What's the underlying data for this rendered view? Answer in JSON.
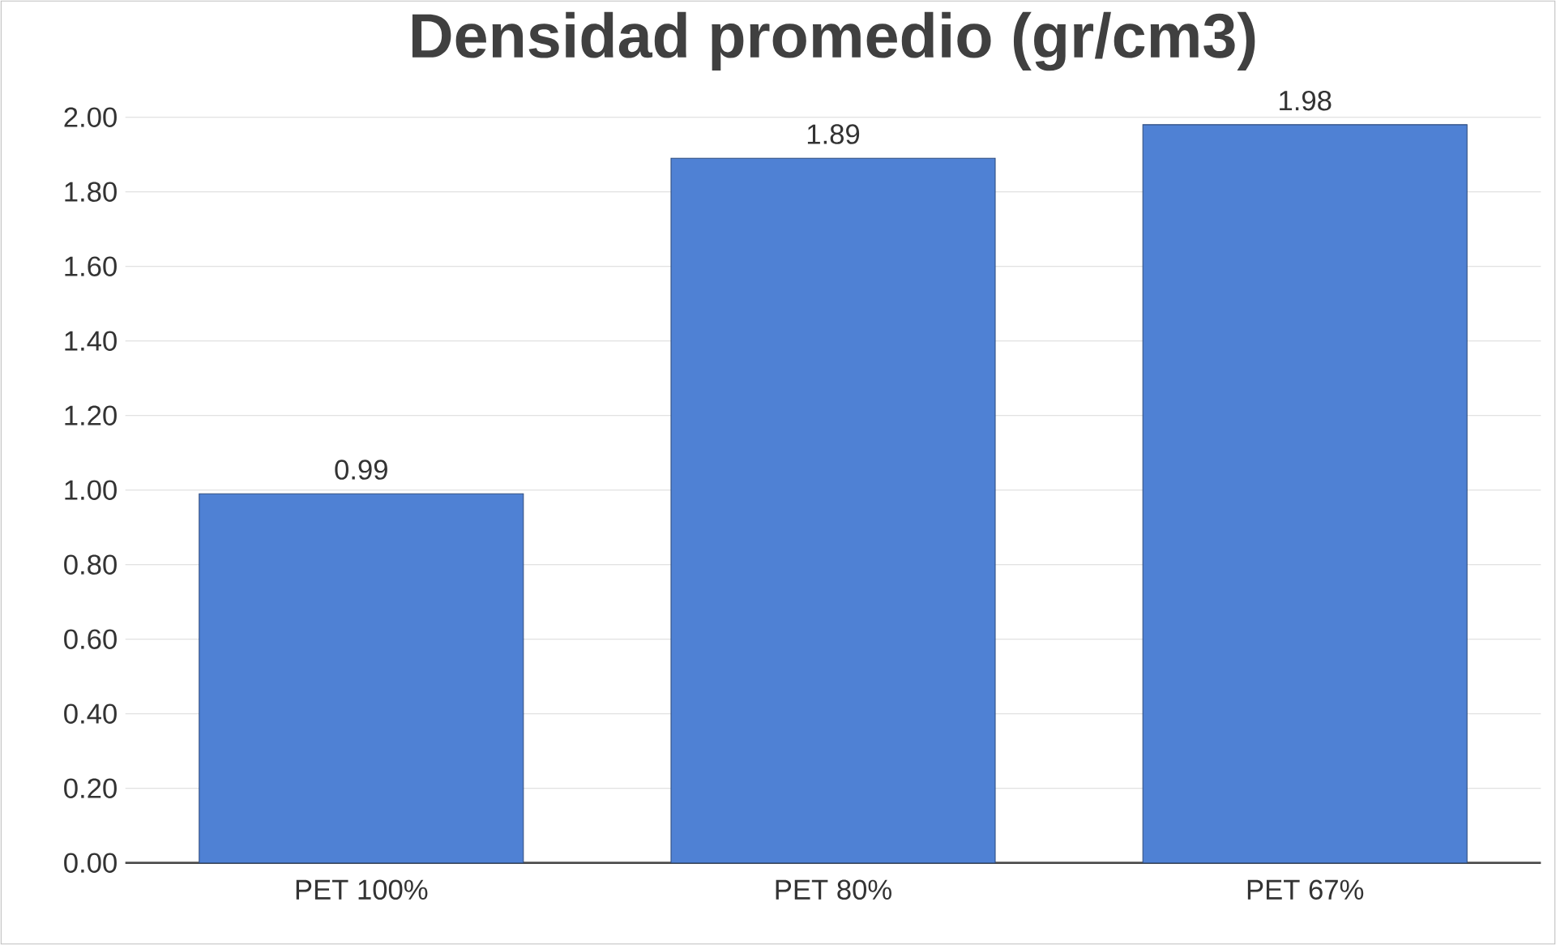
{
  "chart_data": {
    "type": "bar",
    "title": "Densidad promedio (gr/cm3)",
    "categories": [
      "PET 100%",
      "PET 80%",
      "PET 67%"
    ],
    "values": [
      0.99,
      1.89,
      1.98
    ],
    "color": "#4f81d4",
    "ylim": [
      0,
      2
    ],
    "yticks": [
      {
        "value": 0,
        "label": "0.00"
      },
      {
        "value": 0.2,
        "label": "0.20"
      },
      {
        "value": 0.4,
        "label": "0.40"
      },
      {
        "value": 0.6,
        "label": "0.60"
      },
      {
        "value": 0.8,
        "label": "0.80"
      },
      {
        "value": 1.0,
        "label": "1.00"
      },
      {
        "value": 1.2,
        "label": "1.20"
      },
      {
        "value": 1.4,
        "label": "1.40"
      },
      {
        "value": 1.6,
        "label": "1.60"
      },
      {
        "value": 1.8,
        "label": "1.80"
      },
      {
        "value": 2.0,
        "label": "2.00"
      }
    ],
    "grid": "y",
    "data_labels": true
  }
}
